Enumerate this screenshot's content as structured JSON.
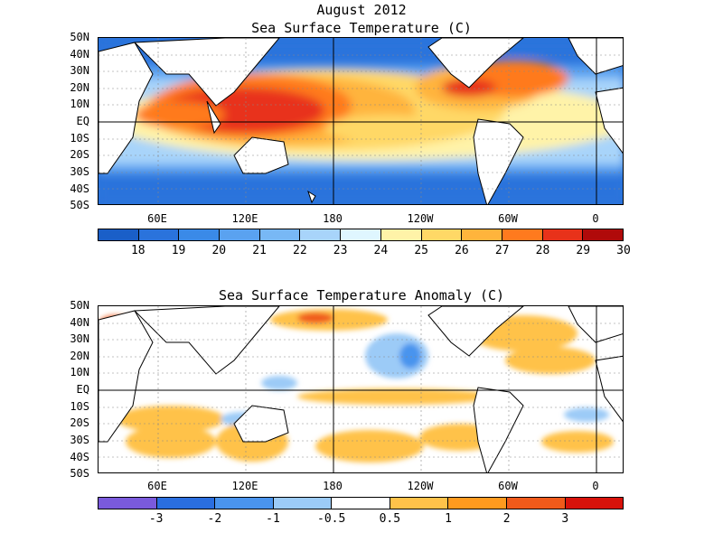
{
  "panel1": {
    "title_line1": "August 2012",
    "title_line2": "Sea Surface Temperature (C)",
    "lat_labels": [
      "50N",
      "40N",
      "30N",
      "20N",
      "10N",
      "EQ",
      "10S",
      "20S",
      "30S",
      "40S",
      "50S"
    ],
    "lon_labels": [
      "60E",
      "120E",
      "180",
      "120W",
      "60W",
      "0"
    ],
    "colorbar": {
      "colors": [
        "#1a5fc8",
        "#2a73dc",
        "#3a8ae8",
        "#5aa2f0",
        "#78b8f5",
        "#a8d4fa",
        "#dff6ff",
        "#fff3a8",
        "#ffd866",
        "#ffb43c",
        "#ff7a1e",
        "#e8321a",
        "#b00a0a"
      ],
      "labels": [
        "18",
        "19",
        "20",
        "21",
        "22",
        "23",
        "24",
        "25",
        "26",
        "27",
        "28",
        "29",
        "30"
      ]
    }
  },
  "panel2": {
    "title": "Sea Surface Temperature Anomaly (C)",
    "lat_labels": [
      "50N",
      "40N",
      "30N",
      "20N",
      "10N",
      "EQ",
      "10S",
      "20S",
      "30S",
      "40S",
      "50S"
    ],
    "lon_labels": [
      "60E",
      "120E",
      "180",
      "120W",
      "60W",
      "0"
    ],
    "colorbar": {
      "colors": [
        "#7a5adc",
        "#2a6ee0",
        "#4a94ee",
        "#9ccbf7",
        "#ffffff",
        "#ffc24a",
        "#ff9a1e",
        "#f05a1a",
        "#d8120a"
      ],
      "labels": [
        "-3",
        "-2",
        "-1",
        "-0.5",
        "0.5",
        "1",
        "2",
        "3"
      ]
    }
  }
}
